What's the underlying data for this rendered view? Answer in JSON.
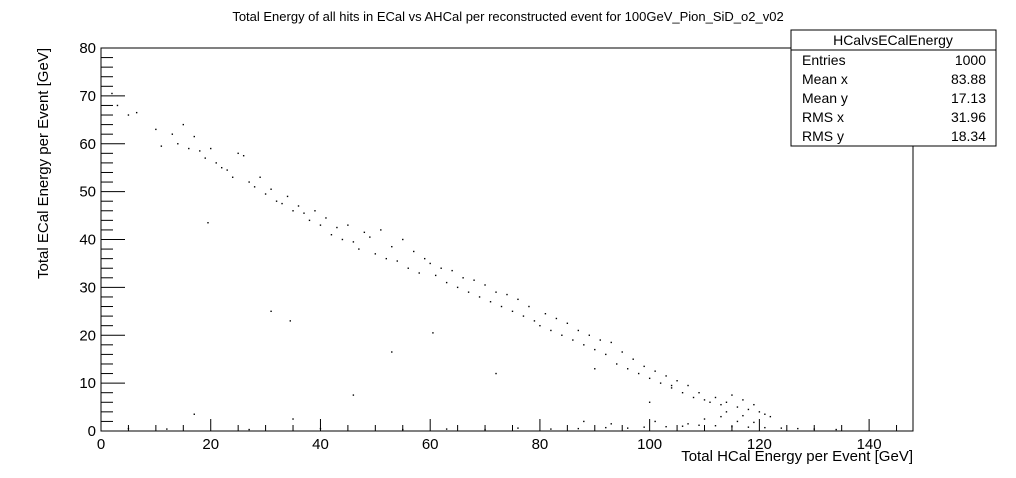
{
  "chart_data": {
    "type": "scatter",
    "title": "Total Energy of all hits in ECal vs AHCal per reconstructed event for 100GeV_Pion_SiD_o2_v02",
    "xlabel": "Total HCal Energy per Event [GeV]",
    "ylabel": "Total ECal Energy per Event [GeV]",
    "xlim": [
      0,
      148
    ],
    "ylim": [
      0,
      80
    ],
    "x_ticks": [
      0,
      20,
      40,
      60,
      80,
      100,
      120,
      140
    ],
    "y_ticks": [
      0,
      10,
      20,
      30,
      40,
      50,
      60,
      70,
      80
    ],
    "x_tick_labels": [
      "0",
      "20",
      "40",
      "60",
      "80",
      "100",
      "120",
      "140"
    ],
    "y_tick_labels": [
      "0",
      "10",
      "20",
      "30",
      "40",
      "50",
      "60",
      "70",
      "80"
    ],
    "grid": false,
    "legend": "none",
    "marker_color": "#000000",
    "points": {
      "x": [
        2.0,
        3.0,
        5.0,
        6.5,
        10.0,
        11.0,
        13.0,
        14.0,
        15.0,
        16.0,
        17.0,
        18.0,
        19.0,
        20.0,
        21.0,
        22.0,
        23.0,
        24.0,
        25.0,
        26.0,
        27.0,
        28.0,
        29.0,
        30.0,
        31.0,
        32.0,
        33.0,
        34.0,
        35.0,
        36.0,
        37.0,
        38.0,
        39.0,
        40.0,
        41.0,
        42.0,
        43.0,
        44.0,
        45.0,
        46.0,
        47.0,
        48.0,
        49.0,
        50.0,
        51.0,
        52.0,
        53.0,
        54.0,
        55.0,
        56.0,
        57.0,
        58.0,
        59.0,
        60.0,
        61.0,
        62.0,
        63.0,
        64.0,
        65.0,
        66.0,
        67.0,
        68.0,
        69.0,
        70.0,
        71.0,
        72.0,
        73.0,
        74.0,
        75.0,
        76.0,
        77.0,
        78.0,
        79.0,
        80.0,
        81.0,
        82.0,
        83.0,
        84.0,
        85.0,
        86.0,
        87.0,
        88.0,
        89.0,
        90.0,
        91.0,
        92.0,
        93.0,
        94.0,
        95.0,
        96.0,
        97.0,
        98.0,
        99.0,
        100.0,
        101.0,
        102.0,
        103.0,
        104.0,
        105.0,
        106.0,
        107.0,
        108.0,
        109.0,
        110.0,
        111.0,
        112.0,
        113.0,
        114.0,
        115.0,
        116.0,
        117.0,
        118.0,
        119.0,
        120.0,
        121.0,
        122.0,
        19.5,
        34.5,
        31.0,
        46.0,
        53.0,
        60.5,
        72.0,
        90.0,
        100.0,
        104.0,
        17.0,
        35.0,
        88.0,
        93.0,
        101.0,
        5.0,
        12.0,
        27.0,
        40.0,
        55.0,
        63.0,
        70.0,
        76.0,
        82.0,
        87.0,
        92.0,
        96.0,
        99.0,
        103.0,
        106.0,
        109.0,
        112.0,
        115.0,
        118.0,
        121.0,
        124.0,
        127.0,
        130.0,
        134.0,
        107.0,
        110.0,
        113.0,
        116.0,
        119.0,
        114.0,
        117.0
      ],
      "y": [
        70.5,
        68.0,
        66.0,
        66.5,
        63.0,
        59.5,
        62.0,
        60.0,
        64.0,
        59.0,
        61.5,
        58.5,
        57.0,
        59.0,
        56.0,
        55.0,
        54.5,
        53.0,
        58.0,
        57.5,
        52.0,
        51.0,
        53.0,
        49.5,
        50.5,
        48.0,
        47.5,
        49.0,
        46.0,
        47.0,
        45.5,
        44.0,
        46.0,
        43.0,
        44.5,
        41.0,
        42.5,
        40.0,
        43.0,
        39.5,
        38.0,
        41.5,
        40.5,
        37.0,
        42.0,
        36.0,
        38.5,
        35.5,
        40.0,
        34.0,
        37.5,
        33.0,
        36.0,
        35.0,
        32.5,
        34.0,
        31.0,
        33.5,
        30.0,
        32.0,
        29.0,
        31.5,
        28.0,
        30.5,
        27.0,
        29.0,
        26.0,
        28.5,
        25.0,
        27.5,
        24.0,
        26.0,
        23.0,
        22.0,
        24.5,
        21.0,
        23.5,
        20.0,
        22.5,
        19.0,
        21.0,
        18.0,
        20.0,
        17.0,
        19.0,
        16.0,
        18.5,
        14.0,
        16.5,
        13.0,
        15.0,
        12.0,
        13.5,
        11.0,
        12.5,
        10.0,
        11.5,
        9.0,
        10.5,
        8.0,
        9.5,
        7.0,
        8.0,
        6.5,
        6.0,
        7.0,
        5.5,
        6.0,
        7.5,
        5.0,
        6.5,
        4.5,
        5.5,
        4.0,
        3.5,
        3.0,
        43.5,
        23.0,
        25.0,
        7.5,
        16.5,
        20.5,
        12.0,
        13.0,
        6.0,
        9.5,
        3.5,
        2.5,
        2.0,
        1.5,
        2.0,
        0.5,
        0.4,
        0.3,
        0.5,
        0.3,
        0.4,
        0.3,
        0.6,
        0.4,
        0.5,
        0.7,
        0.6,
        0.8,
        0.9,
        1.0,
        1.2,
        1.1,
        0.9,
        0.8,
        0.7,
        0.6,
        0.5,
        0.4,
        0.3,
        1.5,
        2.5,
        3.0,
        2.0,
        1.8,
        4.0,
        3.2
      ]
    },
    "stats_box": {
      "name": "HCalvsECalEnergy",
      "rows": [
        {
          "label": "Entries",
          "value": "1000"
        },
        {
          "label": "Mean x",
          "value": "83.88"
        },
        {
          "label": "Mean y",
          "value": "17.13"
        },
        {
          "label": "RMS x",
          "value": "31.96"
        },
        {
          "label": "RMS y",
          "value": "18.34"
        }
      ]
    }
  }
}
